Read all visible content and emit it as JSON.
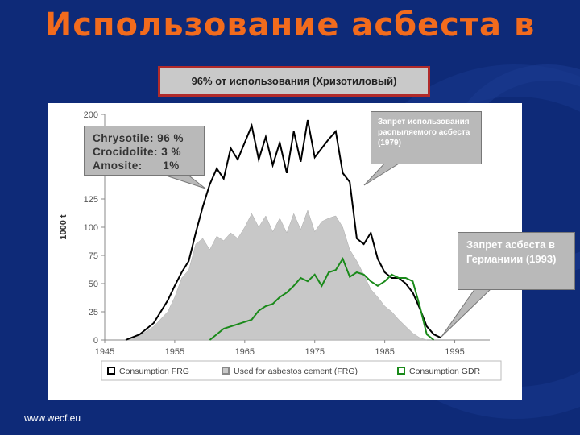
{
  "title": "Использование асбеста в",
  "subtitle": "96% от использования (Хризотиловый)",
  "footer": "www.wecf.eu",
  "callouts": {
    "fibre_types": [
      "Chrysotile: 96 %",
      "Crocidolite: 3 %",
      "Amosite:      1%"
    ],
    "spray_ban": "Запрет использования распыляемого асбеста (1979)",
    "germany_ban": "Запрет асбеста в Германиии (1993)"
  },
  "colors": {
    "background": "#0e2a78",
    "title": "#f26b1d",
    "frg_line": "#000000",
    "cement_fill": "#c8c8c8",
    "gdr_line": "#1a8a1a"
  },
  "chart_data": {
    "type": "area",
    "ylabel": "1000 t",
    "xlabel": "",
    "xlim": [
      1945,
      2000
    ],
    "ylim": [
      0,
      200
    ],
    "x_ticks": [
      "1945",
      "1955",
      "1965",
      "1975",
      "1985",
      "1995"
    ],
    "y_ticks": [
      "0",
      "25",
      "50",
      "75",
      "100",
      "125",
      "150",
      "175",
      "200"
    ],
    "grid": false,
    "legend_position": "bottom",
    "series": [
      {
        "name": "Consumption FRG",
        "kind": "line",
        "x": [
          1948,
          1950,
          1952,
          1954,
          1955,
          1956,
          1957,
          1958,
          1959,
          1960,
          1961,
          1962,
          1963,
          1964,
          1965,
          1966,
          1967,
          1968,
          1969,
          1970,
          1971,
          1972,
          1973,
          1974,
          1975,
          1976,
          1977,
          1978,
          1979,
          1980,
          1981,
          1982,
          1983,
          1984,
          1985,
          1986,
          1987,
          1988,
          1989,
          1990,
          1991,
          1992,
          1993
        ],
        "y": [
          0,
          5,
          15,
          35,
          48,
          60,
          70,
          95,
          118,
          138,
          152,
          143,
          170,
          160,
          175,
          190,
          160,
          180,
          155,
          175,
          148,
          185,
          158,
          195,
          162,
          170,
          178,
          185,
          148,
          140,
          90,
          85,
          95,
          72,
          60,
          55,
          55,
          50,
          42,
          28,
          12,
          5,
          2
        ]
      },
      {
        "name": "Used for asbestos cement (FRG)",
        "kind": "area",
        "x": [
          1948,
          1950,
          1952,
          1954,
          1955,
          1956,
          1957,
          1958,
          1959,
          1960,
          1961,
          1962,
          1963,
          1964,
          1965,
          1966,
          1967,
          1968,
          1969,
          1970,
          1971,
          1972,
          1973,
          1974,
          1975,
          1976,
          1977,
          1978,
          1979,
          1980,
          1981,
          1982,
          1983,
          1984,
          1985,
          1986,
          1987,
          1988,
          1989,
          1990,
          1991
        ],
        "y": [
          0,
          4,
          12,
          25,
          38,
          55,
          62,
          85,
          90,
          80,
          92,
          88,
          95,
          90,
          100,
          112,
          100,
          110,
          96,
          108,
          95,
          112,
          98,
          115,
          96,
          105,
          108,
          110,
          100,
          80,
          70,
          58,
          45,
          38,
          30,
          25,
          18,
          12,
          6,
          2,
          0
        ]
      },
      {
        "name": "Consumption GDR",
        "kind": "line",
        "x": [
          1960,
          1961,
          1962,
          1964,
          1966,
          1967,
          1968,
          1969,
          1970,
          1971,
          1972,
          1973,
          1974,
          1975,
          1976,
          1977,
          1978,
          1979,
          1980,
          1981,
          1982,
          1983,
          1984,
          1985,
          1986,
          1987,
          1988,
          1989,
          1990,
          1991,
          1992
        ],
        "y": [
          0,
          5,
          10,
          14,
          18,
          26,
          30,
          32,
          38,
          42,
          48,
          55,
          52,
          58,
          48,
          60,
          62,
          72,
          56,
          60,
          58,
          52,
          48,
          52,
          58,
          55,
          55,
          52,
          30,
          5,
          0
        ]
      }
    ]
  }
}
